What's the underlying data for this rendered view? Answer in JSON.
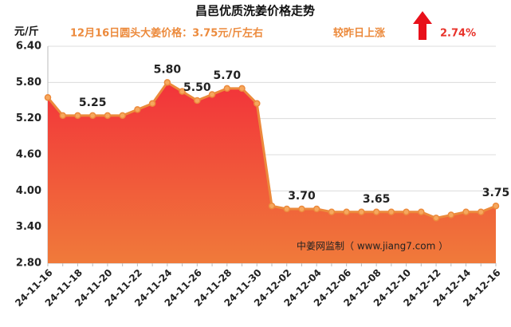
{
  "chart_data": {
    "type": "area-line",
    "title": "昌邑优质洗姜价格走势",
    "y_unit": "元/斤",
    "price_note": "12月16日圆头大姜价格：3.75元/斤左右",
    "change_text": "较昨日上涨",
    "change_pct": "2.74%",
    "watermark": "中姜网监制（ www.jiang7.com ）",
    "categories": [
      "24-11-16",
      null,
      "24-11-18",
      null,
      "24-11-20",
      null,
      "24-11-22",
      null,
      "24-11-24",
      null,
      "24-11-26",
      null,
      "24-11-28",
      null,
      "24-11-30",
      null,
      "24-12-02",
      null,
      "24-12-04",
      null,
      "24-12-06",
      null,
      "24-12-08",
      null,
      "24-12-10",
      null,
      "24-12-12",
      null,
      "24-12-14",
      null,
      "24-12-16"
    ],
    "values": [
      5.55,
      5.25,
      5.25,
      5.25,
      5.25,
      5.25,
      5.35,
      5.45,
      5.8,
      5.65,
      5.5,
      5.6,
      5.7,
      5.7,
      5.45,
      3.75,
      3.7,
      3.7,
      3.7,
      3.65,
      3.65,
      3.65,
      3.65,
      3.65,
      3.65,
      3.65,
      3.55,
      3.6,
      3.65,
      3.65,
      3.75
    ],
    "value_labels": [
      null,
      null,
      null,
      "5.25",
      null,
      null,
      null,
      null,
      "5.80",
      null,
      "5.50",
      null,
      "5.70",
      null,
      null,
      null,
      null,
      "3.70",
      null,
      null,
      null,
      null,
      "3.65",
      null,
      null,
      null,
      null,
      null,
      null,
      null,
      "3.75"
    ],
    "color": "#ec8a3c",
    "ylim": [
      2.8,
      6.4
    ],
    "yticks": [
      {
        "value": 2.8,
        "label": "2.80"
      },
      {
        "value": 3.4,
        "label": "3.40"
      },
      {
        "value": 4,
        "label": "4.00"
      },
      {
        "value": 4.6,
        "label": "4.60"
      },
      {
        "value": 5.2,
        "label": "5.20"
      },
      {
        "value": 5.8,
        "label": "5.80"
      },
      {
        "value": 6.4,
        "label": "6.40"
      }
    ],
    "grid": true
  }
}
